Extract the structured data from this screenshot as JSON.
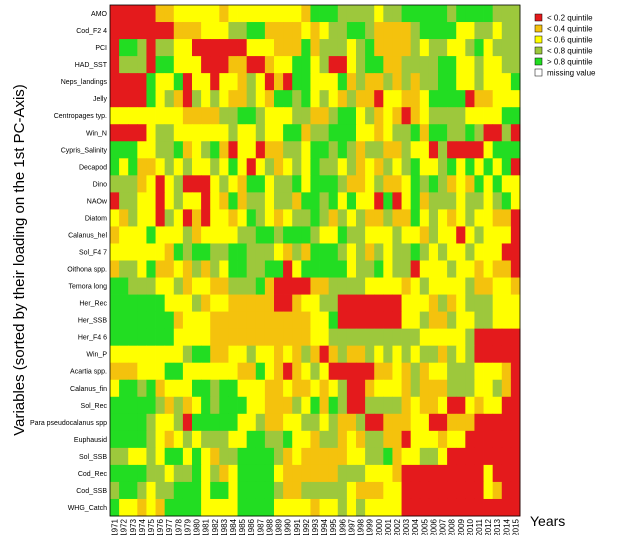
{
  "chart_data": {
    "type": "heatmap",
    "ylabel": "Variables (sorted by their loading on the 1st PC-Axis)",
    "xlabel": "Years",
    "years": [
      "1971",
      "1972",
      "1973",
      "1974",
      "1975",
      "1976",
      "1977",
      "1978",
      "1979",
      "1980",
      "1981",
      "1982",
      "1983",
      "1984",
      "1985",
      "1986",
      "1987",
      "1988",
      "1989",
      "1990",
      "1991",
      "1992",
      "1993",
      "1994",
      "1995",
      "1996",
      "1997",
      "1998",
      "1999",
      "2000",
      "2001",
      "2002",
      "2003",
      "2004",
      "2005",
      "2006",
      "2007",
      "2008",
      "2009",
      "2010",
      "2011",
      "2012",
      "2013",
      "2014",
      "2015"
    ],
    "variables": [
      "AMO",
      "Cod_F2 4",
      "PCI",
      "HAD_SST",
      "Neps_landings",
      "Jelly",
      "Centropages typ.",
      "Win_N",
      "Cypris_Salinity",
      "Decapod",
      "Dino",
      "NAOw",
      "Diatom",
      "Calanus_hel",
      "Sol_F4 7",
      "Oithona spp.",
      "Temora long",
      "Her_Rec",
      "Her_SSB",
      "Her_F4 6",
      "Win_P",
      "Acartia spp.",
      "Calanus_fin",
      "Sol_Rec",
      "Para pseudocalanus spp",
      "Euphausid",
      "Sol_SSB",
      "Cod_Rec",
      "Cod_SSB",
      "WHG_Catch"
    ],
    "legend": [
      {
        "label": "< 0.2 quintile",
        "color": "#e41a1c"
      },
      {
        "label": "< 0.4 quintile",
        "color": "#f4c20d"
      },
      {
        "label": "< 0.6 quintile",
        "color": "#ffff00"
      },
      {
        "label": "< 0.8 quintile",
        "color": "#9dc83c"
      },
      {
        "label": "> 0.8 quintile",
        "color": "#22dd22"
      },
      {
        "label": "missing value",
        "color": "#ffffff"
      }
    ],
    "legend_position": "top-right",
    "grid": false,
    "quintile_codes": "0 = <0.2, 1 = <0.4, 2 = <0.6, 3 = <0.8, 4 = >0.8, -1 = missing",
    "values": [
      [
        0,
        0,
        0,
        0,
        0,
        1,
        1,
        2,
        2,
        2,
        2,
        2,
        1,
        2,
        2,
        2,
        2,
        2,
        2,
        2,
        2,
        1,
        4,
        4,
        4,
        3,
        3,
        3,
        3,
        2,
        3,
        3,
        4,
        4,
        4,
        4,
        4,
        3,
        4,
        4,
        4,
        4,
        3,
        3,
        3
      ],
      [
        0,
        0,
        0,
        0,
        0,
        0,
        0,
        1,
        1,
        1,
        2,
        2,
        2,
        3,
        3,
        4,
        4,
        1,
        1,
        1,
        1,
        2,
        1,
        2,
        3,
        3,
        4,
        4,
        3,
        1,
        1,
        1,
        1,
        3,
        4,
        4,
        4,
        4,
        2,
        2,
        3,
        3,
        2,
        3,
        3
      ],
      [
        0,
        4,
        4,
        3,
        0,
        3,
        3,
        2,
        2,
        0,
        0,
        0,
        0,
        0,
        0,
        2,
        2,
        2,
        1,
        1,
        1,
        4,
        1,
        3,
        3,
        3,
        2,
        3,
        4,
        1,
        1,
        1,
        1,
        3,
        2,
        3,
        3,
        2,
        2,
        3,
        4,
        2,
        3,
        3,
        3
      ],
      [
        0,
        3,
        3,
        3,
        0,
        4,
        4,
        2,
        2,
        2,
        0,
        0,
        0,
        1,
        1,
        0,
        0,
        1,
        2,
        2,
        4,
        4,
        2,
        3,
        0,
        0,
        2,
        3,
        4,
        4,
        1,
        1,
        3,
        3,
        3,
        3,
        4,
        4,
        2,
        2,
        3,
        2,
        2,
        3,
        3
      ],
      [
        0,
        0,
        0,
        0,
        4,
        2,
        2,
        4,
        0,
        2,
        2,
        0,
        2,
        2,
        1,
        3,
        2,
        0,
        1,
        0,
        4,
        4,
        2,
        2,
        2,
        4,
        1,
        3,
        1,
        1,
        3,
        1,
        3,
        1,
        3,
        3,
        4,
        4,
        2,
        2,
        3,
        2,
        2,
        2,
        4
      ],
      [
        0,
        0,
        0,
        0,
        4,
        2,
        3,
        1,
        0,
        3,
        2,
        3,
        2,
        1,
        1,
        3,
        2,
        1,
        4,
        4,
        3,
        4,
        2,
        3,
        2,
        1,
        3,
        1,
        1,
        0,
        2,
        2,
        1,
        1,
        2,
        4,
        4,
        4,
        4,
        0,
        1,
        1,
        2,
        2,
        2
      ],
      [
        2,
        2,
        2,
        2,
        2,
        2,
        2,
        2,
        1,
        1,
        1,
        1,
        3,
        3,
        4,
        4,
        3,
        2,
        2,
        2,
        3,
        3,
        1,
        1,
        3,
        4,
        4,
        2,
        3,
        1,
        2,
        1,
        0,
        1,
        2,
        3,
        3,
        3,
        3,
        2,
        2,
        2,
        2,
        4,
        4
      ],
      [
        0,
        0,
        0,
        0,
        2,
        3,
        3,
        2,
        2,
        2,
        2,
        2,
        2,
        3,
        2,
        2,
        3,
        2,
        2,
        4,
        4,
        1,
        3,
        3,
        4,
        4,
        4,
        2,
        2,
        1,
        2,
        3,
        3,
        4,
        1,
        4,
        4,
        3,
        3,
        4,
        3,
        0,
        0,
        3,
        0
      ],
      [
        4,
        4,
        4,
        2,
        2,
        3,
        3,
        4,
        1,
        2,
        3,
        4,
        1,
        0,
        2,
        2,
        0,
        1,
        1,
        3,
        3,
        2,
        4,
        4,
        3,
        4,
        3,
        1,
        3,
        3,
        1,
        1,
        3,
        2,
        2,
        0,
        3,
        0,
        0,
        0,
        0,
        2,
        4,
        4,
        4
      ],
      [
        4,
        2,
        4,
        1,
        1,
        2,
        3,
        2,
        3,
        2,
        2,
        3,
        2,
        4,
        2,
        0,
        2,
        3,
        1,
        2,
        3,
        2,
        4,
        3,
        3,
        2,
        3,
        1,
        2,
        1,
        3,
        2,
        3,
        4,
        2,
        2,
        3,
        4,
        2,
        4,
        2,
        4,
        2,
        4,
        0
      ],
      [
        3,
        3,
        3,
        1,
        2,
        0,
        2,
        3,
        0,
        0,
        0,
        2,
        3,
        2,
        1,
        4,
        4,
        2,
        3,
        3,
        4,
        2,
        4,
        4,
        4,
        3,
        1,
        1,
        2,
        3,
        1,
        1,
        2,
        4,
        3,
        4,
        3,
        1,
        2,
        1,
        4,
        2,
        4,
        2,
        2
      ],
      [
        0,
        3,
        3,
        2,
        2,
        0,
        2,
        3,
        2,
        2,
        0,
        2,
        1,
        4,
        1,
        3,
        3,
        2,
        3,
        3,
        1,
        4,
        4,
        3,
        4,
        2,
        4,
        2,
        2,
        0,
        4,
        0,
        2,
        4,
        1,
        3,
        3,
        3,
        2,
        3,
        3,
        2,
        3,
        4,
        2
      ],
      [
        2,
        1,
        3,
        2,
        2,
        0,
        3,
        2,
        0,
        1,
        0,
        2,
        2,
        1,
        2,
        4,
        3,
        2,
        1,
        2,
        3,
        3,
        4,
        3,
        1,
        3,
        2,
        3,
        1,
        1,
        3,
        1,
        1,
        4,
        2,
        3,
        2,
        1,
        2,
        3,
        2,
        2,
        1,
        1,
        0
      ],
      [
        1,
        2,
        2,
        2,
        4,
        2,
        2,
        2,
        3,
        1,
        2,
        2,
        2,
        2,
        3,
        3,
        4,
        4,
        3,
        4,
        4,
        4,
        3,
        2,
        2,
        4,
        3,
        3,
        2,
        2,
        2,
        3,
        2,
        2,
        1,
        3,
        2,
        2,
        0,
        2,
        3,
        2,
        2,
        2,
        0
      ],
      [
        2,
        2,
        2,
        2,
        2,
        2,
        1,
        4,
        3,
        4,
        4,
        3,
        3,
        4,
        4,
        3,
        3,
        3,
        2,
        1,
        3,
        1,
        4,
        4,
        4,
        3,
        2,
        3,
        1,
        3,
        2,
        3,
        3,
        4,
        3,
        2,
        3,
        2,
        2,
        3,
        2,
        2,
        2,
        0,
        0
      ],
      [
        1,
        3,
        3,
        2,
        4,
        1,
        1,
        2,
        1,
        3,
        1,
        3,
        2,
        4,
        4,
        3,
        3,
        4,
        4,
        0,
        2,
        4,
        4,
        4,
        4,
        4,
        2,
        3,
        3,
        4,
        2,
        3,
        3,
        0,
        2,
        2,
        2,
        3,
        2,
        2,
        1,
        2,
        1,
        1,
        0
      ],
      [
        4,
        4,
        3,
        3,
        3,
        2,
        2,
        3,
        1,
        2,
        2,
        1,
        1,
        3,
        3,
        3,
        4,
        1,
        0,
        0,
        0,
        0,
        1,
        1,
        3,
        3,
        3,
        3,
        2,
        2,
        2,
        2,
        1,
        2,
        3,
        2,
        2,
        2,
        2,
        3,
        1,
        1,
        2,
        2,
        1
      ],
      [
        4,
        4,
        4,
        4,
        4,
        4,
        2,
        2,
        2,
        3,
        1,
        2,
        2,
        1,
        1,
        1,
        1,
        1,
        0,
        0,
        1,
        2,
        2,
        3,
        3,
        0,
        0,
        0,
        0,
        0,
        0,
        0,
        2,
        2,
        2,
        1,
        3,
        1,
        2,
        3,
        3,
        3,
        2,
        2,
        2
      ],
      [
        4,
        4,
        4,
        4,
        4,
        4,
        4,
        1,
        2,
        2,
        2,
        1,
        1,
        1,
        1,
        1,
        1,
        1,
        1,
        1,
        1,
        1,
        2,
        2,
        4,
        0,
        0,
        0,
        0,
        0,
        0,
        0,
        2,
        2,
        3,
        1,
        1,
        3,
        2,
        2,
        3,
        3,
        2,
        2,
        2
      ],
      [
        4,
        4,
        4,
        4,
        4,
        4,
        4,
        2,
        2,
        2,
        2,
        1,
        1,
        1,
        1,
        1,
        1,
        1,
        1,
        1,
        1,
        1,
        2,
        2,
        3,
        3,
        3,
        3,
        3,
        3,
        3,
        3,
        3,
        3,
        2,
        2,
        2,
        2,
        2,
        3,
        0,
        0,
        0,
        0,
        0
      ],
      [
        2,
        2,
        2,
        2,
        2,
        2,
        2,
        2,
        3,
        4,
        4,
        1,
        1,
        2,
        2,
        3,
        2,
        2,
        1,
        2,
        1,
        3,
        1,
        0,
        1,
        3,
        1,
        1,
        3,
        2,
        3,
        2,
        3,
        2,
        3,
        3,
        1,
        3,
        2,
        3,
        0,
        0,
        0,
        0,
        0
      ],
      [
        1,
        1,
        1,
        2,
        2,
        2,
        4,
        4,
        2,
        2,
        2,
        2,
        2,
        2,
        1,
        1,
        4,
        2,
        1,
        0,
        1,
        2,
        3,
        2,
        0,
        0,
        0,
        0,
        0,
        1,
        1,
        2,
        1,
        3,
        1,
        2,
        2,
        3,
        3,
        3,
        2,
        2,
        2,
        1,
        0
      ],
      [
        2,
        4,
        4,
        3,
        4,
        1,
        2,
        2,
        2,
        4,
        4,
        3,
        4,
        4,
        2,
        2,
        2,
        1,
        1,
        2,
        1,
        1,
        2,
        1,
        2,
        3,
        0,
        0,
        1,
        2,
        2,
        2,
        1,
        3,
        1,
        1,
        1,
        3,
        3,
        3,
        2,
        2,
        3,
        1,
        0
      ],
      [
        4,
        4,
        4,
        4,
        4,
        3,
        1,
        3,
        1,
        2,
        4,
        3,
        4,
        4,
        4,
        2,
        2,
        1,
        1,
        1,
        3,
        2,
        4,
        1,
        4,
        3,
        0,
        0,
        3,
        3,
        3,
        3,
        1,
        2,
        1,
        1,
        2,
        0,
        0,
        2,
        1,
        2,
        2,
        0,
        0
      ],
      [
        4,
        4,
        4,
        4,
        3,
        2,
        2,
        3,
        0,
        4,
        4,
        4,
        4,
        4,
        2,
        2,
        3,
        1,
        1,
        2,
        2,
        3,
        3,
        2,
        3,
        1,
        1,
        3,
        0,
        0,
        1,
        1,
        1,
        2,
        2,
        0,
        0,
        1,
        1,
        1,
        0,
        0,
        0,
        0,
        0
      ],
      [
        4,
        4,
        4,
        4,
        3,
        2,
        1,
        2,
        3,
        2,
        3,
        3,
        3,
        2,
        2,
        4,
        4,
        3,
        3,
        4,
        2,
        2,
        1,
        3,
        3,
        1,
        2,
        1,
        3,
        3,
        1,
        1,
        0,
        2,
        2,
        2,
        1,
        2,
        2,
        0,
        0,
        0,
        0,
        0,
        0
      ],
      [
        3,
        3,
        2,
        2,
        3,
        2,
        4,
        4,
        2,
        4,
        2,
        1,
        3,
        3,
        4,
        4,
        4,
        4,
        3,
        1,
        2,
        1,
        1,
        1,
        1,
        1,
        2,
        2,
        3,
        3,
        4,
        1,
        2,
        2,
        3,
        3,
        2,
        0,
        0,
        0,
        0,
        0,
        0,
        0,
        0
      ],
      [
        4,
        4,
        4,
        4,
        3,
        3,
        2,
        3,
        3,
        4,
        2,
        3,
        1,
        2,
        4,
        4,
        4,
        4,
        2,
        1,
        1,
        1,
        1,
        1,
        1,
        3,
        3,
        3,
        2,
        2,
        2,
        1,
        0,
        0,
        0,
        0,
        0,
        0,
        0,
        0,
        0,
        2,
        0,
        0,
        0
      ],
      [
        3,
        4,
        4,
        3,
        2,
        3,
        3,
        4,
        4,
        4,
        2,
        4,
        4,
        2,
        4,
        4,
        4,
        4,
        3,
        1,
        1,
        3,
        3,
        3,
        3,
        3,
        2,
        1,
        1,
        1,
        2,
        2,
        0,
        0,
        0,
        0,
        0,
        0,
        0,
        0,
        0,
        2,
        1,
        0,
        0
      ],
      [
        4,
        2,
        2,
        1,
        2,
        1,
        4,
        4,
        4,
        4,
        2,
        2,
        2,
        2,
        4,
        4,
        4,
        4,
        2,
        2,
        2,
        2,
        1,
        2,
        2,
        3,
        2,
        3,
        2,
        2,
        2,
        2,
        0,
        0,
        0,
        0,
        0,
        0,
        0,
        0,
        0,
        0,
        0,
        0,
        0
      ]
    ]
  }
}
